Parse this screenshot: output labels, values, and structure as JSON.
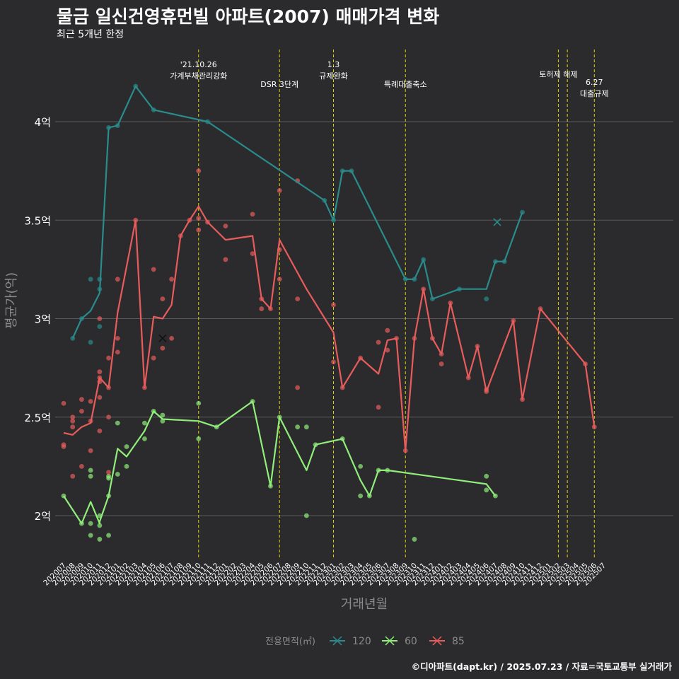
{
  "title": "물금 일신건영휴먼빌 아파트(2007) 매매가격 변화",
  "subtitle": "최근 5개년 한정",
  "caption": "©디아파트(dapt.kr) / 2025.07.23 / 자료=국토교통부 실거래가",
  "chart_data": {
    "type": "line",
    "xlabel": "거래년월",
    "ylabel": "평균가(억)",
    "legend_title": "전용면적(㎡)",
    "legend_position": "bottom",
    "grid": true,
    "ylim": [
      1.78,
      4.48
    ],
    "y_ticks": [
      2.0,
      2.5,
      3.0,
      3.5,
      4.0
    ],
    "y_tick_labels": [
      "2억",
      "2.5억",
      "3억",
      "3.5억",
      "4억"
    ],
    "x_tick_labels": [
      "202007",
      "202008",
      "202009",
      "202010",
      "202011",
      "202012",
      "202101",
      "202102",
      "202103",
      "202104",
      "202105",
      "202106",
      "202107",
      "202108",
      "202109",
      "202110",
      "202111",
      "202112",
      "202201",
      "202202",
      "202203",
      "202204",
      "202205",
      "202206",
      "202207",
      "202208",
      "202209",
      "202210",
      "202211",
      "202212",
      "202301",
      "202302",
      "202303",
      "202304",
      "202305",
      "202306",
      "202307",
      "202308",
      "202309",
      "202310",
      "202311",
      "202312",
      "202401",
      "202402",
      "202403",
      "202404",
      "202405",
      "202406",
      "202407",
      "202408",
      "202409",
      "202410",
      "202411",
      "202412",
      "202501",
      "202502",
      "202503",
      "202504",
      "202505",
      "202506",
      "202507"
    ],
    "events": [
      {
        "x": 15,
        "label_lines": [
          "'21.10.26",
          "가계부채관리강화"
        ],
        "level": 0
      },
      {
        "x": 24,
        "label_lines": [
          "DSR 3단계"
        ],
        "level": 2
      },
      {
        "x": 30,
        "label_lines": [
          "1.3",
          "규제완화"
        ],
        "level": 0
      },
      {
        "x": 38,
        "label_lines": [
          "특례대출축소"
        ],
        "level": 2
      },
      {
        "x": 55,
        "label_lines": [
          "토허제 해제"
        ],
        "level": 1
      },
      {
        "x": 56,
        "label_lines": [],
        "level": 1
      },
      {
        "x": 59,
        "label_lines": [
          "6.27",
          "대출규제"
        ],
        "level": 1.8
      }
    ],
    "series": [
      {
        "name": "120",
        "color": "#2a8c8c",
        "line": [
          [
            1,
            2.9
          ],
          [
            2,
            3.0
          ],
          [
            3,
            3.04
          ],
          [
            4,
            3.13
          ],
          [
            5,
            3.97
          ],
          [
            6,
            3.98
          ],
          [
            8,
            4.18
          ],
          [
            10,
            4.06
          ],
          [
            16,
            4.0
          ],
          [
            29,
            3.6
          ],
          [
            30,
            3.5
          ],
          [
            31,
            3.75
          ],
          [
            32,
            3.75
          ],
          [
            38,
            3.2
          ],
          [
            39,
            3.2
          ],
          [
            40,
            3.3
          ],
          [
            41,
            3.1
          ],
          [
            44,
            3.15
          ],
          [
            47,
            3.15
          ],
          [
            48,
            3.29
          ],
          [
            49,
            3.29
          ],
          [
            51,
            3.54
          ]
        ],
        "points": [
          [
            1,
            2.9
          ],
          [
            2,
            3.0
          ],
          [
            3,
            3.2
          ],
          [
            3,
            2.88
          ],
          [
            4,
            3.2
          ],
          [
            4,
            2.96
          ],
          [
            4,
            3.15
          ],
          [
            5,
            3.97
          ],
          [
            6,
            3.98
          ],
          [
            8,
            4.18
          ],
          [
            10,
            4.06
          ],
          [
            16,
            4.0
          ],
          [
            29,
            3.6
          ],
          [
            30,
            3.5
          ],
          [
            31,
            3.75
          ],
          [
            32,
            3.75
          ],
          [
            38,
            3.2
          ],
          [
            39,
            3.2
          ],
          [
            40,
            3.3
          ],
          [
            41,
            3.1
          ],
          [
            44,
            3.15
          ],
          [
            47,
            3.1
          ],
          [
            48,
            3.29
          ],
          [
            49,
            3.29
          ],
          [
            51,
            3.54
          ]
        ],
        "highlight": [
          48.2,
          3.49
        ]
      },
      {
        "name": "60",
        "color": "#90ee7a",
        "line": [
          [
            0,
            2.1
          ],
          [
            2,
            1.96
          ],
          [
            3,
            2.07
          ],
          [
            4,
            1.96
          ],
          [
            4,
            1.97
          ],
          [
            5,
            2.1
          ],
          [
            6,
            2.34
          ],
          [
            7,
            2.3
          ],
          [
            9,
            2.43
          ],
          [
            10,
            2.53
          ],
          [
            11,
            2.49
          ],
          [
            15,
            2.48
          ],
          [
            17,
            2.45
          ],
          [
            21,
            2.58
          ],
          [
            23,
            2.15
          ],
          [
            24,
            2.5
          ],
          [
            27,
            2.23
          ],
          [
            28,
            2.36
          ],
          [
            31,
            2.39
          ],
          [
            33,
            2.18
          ],
          [
            34,
            2.1
          ],
          [
            35,
            2.23
          ],
          [
            36,
            2.23
          ],
          [
            47,
            2.16
          ],
          [
            48,
            2.1
          ]
        ],
        "points": [
          [
            0,
            2.1
          ],
          [
            2,
            1.96
          ],
          [
            3,
            1.96
          ],
          [
            3,
            1.9
          ],
          [
            3,
            2.23
          ],
          [
            3,
            2.2
          ],
          [
            4,
            1.88
          ],
          [
            4,
            1.95
          ],
          [
            4,
            2.0
          ],
          [
            5,
            2.19
          ],
          [
            5,
            1.9
          ],
          [
            5,
            2.2
          ],
          [
            5,
            2.1
          ],
          [
            6,
            2.47
          ],
          [
            6,
            2.21
          ],
          [
            7,
            2.35
          ],
          [
            7,
            2.25
          ],
          [
            9,
            2.47
          ],
          [
            9,
            2.39
          ],
          [
            10,
            2.53
          ],
          [
            11,
            2.51
          ],
          [
            11,
            2.48
          ],
          [
            15,
            2.57
          ],
          [
            15,
            2.39
          ],
          [
            17,
            2.45
          ],
          [
            21,
            2.58
          ],
          [
            23,
            2.15
          ],
          [
            24,
            2.5
          ],
          [
            26,
            2.45
          ],
          [
            27,
            2.45
          ],
          [
            27,
            2.0
          ],
          [
            28,
            2.36
          ],
          [
            31,
            2.39
          ],
          [
            33,
            2.25
          ],
          [
            33,
            2.1
          ],
          [
            34,
            2.1
          ],
          [
            35,
            2.23
          ],
          [
            36,
            2.23
          ],
          [
            39,
            1.88
          ],
          [
            47,
            2.2
          ],
          [
            47,
            2.13
          ],
          [
            48,
            2.1
          ]
        ]
      },
      {
        "name": "85",
        "color": "#e85c5c",
        "line": [
          [
            0,
            2.42
          ],
          [
            1,
            2.41
          ],
          [
            2,
            2.45
          ],
          [
            3,
            2.47
          ],
          [
            4,
            2.7
          ],
          [
            5,
            2.65
          ],
          [
            6,
            3.03
          ],
          [
            8,
            3.5
          ],
          [
            9,
            2.65
          ],
          [
            10,
            3.01
          ],
          [
            11,
            3.0
          ],
          [
            12,
            3.07
          ],
          [
            13,
            3.42
          ],
          [
            14,
            3.5
          ],
          [
            15,
            3.57
          ],
          [
            16,
            3.49
          ],
          [
            18,
            3.4
          ],
          [
            21,
            3.42
          ],
          [
            22,
            3.1
          ],
          [
            23,
            3.05
          ],
          [
            24,
            3.4
          ],
          [
            27,
            3.15
          ],
          [
            30,
            2.93
          ],
          [
            31,
            2.65
          ],
          [
            33,
            2.8
          ],
          [
            35,
            2.72
          ],
          [
            36,
            2.89
          ],
          [
            37,
            2.9
          ],
          [
            38,
            2.33
          ],
          [
            39,
            2.9
          ],
          [
            40,
            3.15
          ],
          [
            41,
            2.9
          ],
          [
            42,
            2.82
          ],
          [
            43,
            3.08
          ],
          [
            45,
            2.7
          ],
          [
            46,
            2.86
          ],
          [
            47,
            2.63
          ],
          [
            50,
            2.99
          ],
          [
            51,
            2.59
          ],
          [
            53,
            3.05
          ],
          [
            58,
            2.77
          ],
          [
            59,
            2.45
          ]
        ],
        "points": [
          [
            0,
            2.57
          ],
          [
            0,
            2.36
          ],
          [
            0,
            2.35
          ],
          [
            1,
            2.2
          ],
          [
            1,
            2.5
          ],
          [
            1,
            2.48
          ],
          [
            1,
            2.45
          ],
          [
            2,
            2.59
          ],
          [
            2,
            2.53
          ],
          [
            2,
            2.25
          ],
          [
            3,
            2.58
          ],
          [
            3,
            2.48
          ],
          [
            3,
            2.33
          ],
          [
            4,
            3.0
          ],
          [
            4,
            2.73
          ],
          [
            4,
            2.7
          ],
          [
            4,
            2.68
          ],
          [
            4,
            2.6
          ],
          [
            4,
            2.43
          ],
          [
            5,
            2.22
          ],
          [
            5,
            2.65
          ],
          [
            5,
            2.8
          ],
          [
            5,
            2.5
          ],
          [
            6,
            3.2
          ],
          [
            6,
            2.9
          ],
          [
            6,
            2.83
          ],
          [
            8,
            3.5
          ],
          [
            9,
            2.65
          ],
          [
            10,
            3.25
          ],
          [
            10,
            2.8
          ],
          [
            11,
            2.85
          ],
          [
            11,
            3.1
          ],
          [
            12,
            3.2
          ],
          [
            12,
            2.9
          ],
          [
            13,
            3.42
          ],
          [
            14,
            3.5
          ],
          [
            15,
            3.75
          ],
          [
            15,
            3.51
          ],
          [
            15,
            3.45
          ],
          [
            16,
            3.49
          ],
          [
            18,
            3.47
          ],
          [
            18,
            3.3
          ],
          [
            21,
            3.53
          ],
          [
            21,
            3.33
          ],
          [
            22,
            3.1
          ],
          [
            22,
            3.05
          ],
          [
            23,
            3.05
          ],
          [
            24,
            3.65
          ],
          [
            24,
            3.2
          ],
          [
            24,
            3.35
          ],
          [
            26,
            3.7
          ],
          [
            26,
            3.1
          ],
          [
            26,
            2.65
          ],
          [
            30,
            3.07
          ],
          [
            30,
            2.78
          ],
          [
            31,
            2.65
          ],
          [
            33,
            2.8
          ],
          [
            35,
            2.55
          ],
          [
            35,
            2.88
          ],
          [
            36,
            2.94
          ],
          [
            36,
            2.84
          ],
          [
            37,
            2.9
          ],
          [
            38,
            2.33
          ],
          [
            39,
            2.9
          ],
          [
            40,
            3.15
          ],
          [
            41,
            2.9
          ],
          [
            42,
            2.77
          ],
          [
            42,
            2.82
          ],
          [
            43,
            3.08
          ],
          [
            45,
            2.7
          ],
          [
            46,
            2.86
          ],
          [
            47,
            2.64
          ],
          [
            47,
            2.63
          ],
          [
            50,
            2.99
          ],
          [
            51,
            2.59
          ],
          [
            53,
            3.05
          ],
          [
            58,
            2.77
          ],
          [
            59,
            2.45
          ]
        ],
        "highlight": [
          11,
          2.9
        ]
      }
    ]
  }
}
